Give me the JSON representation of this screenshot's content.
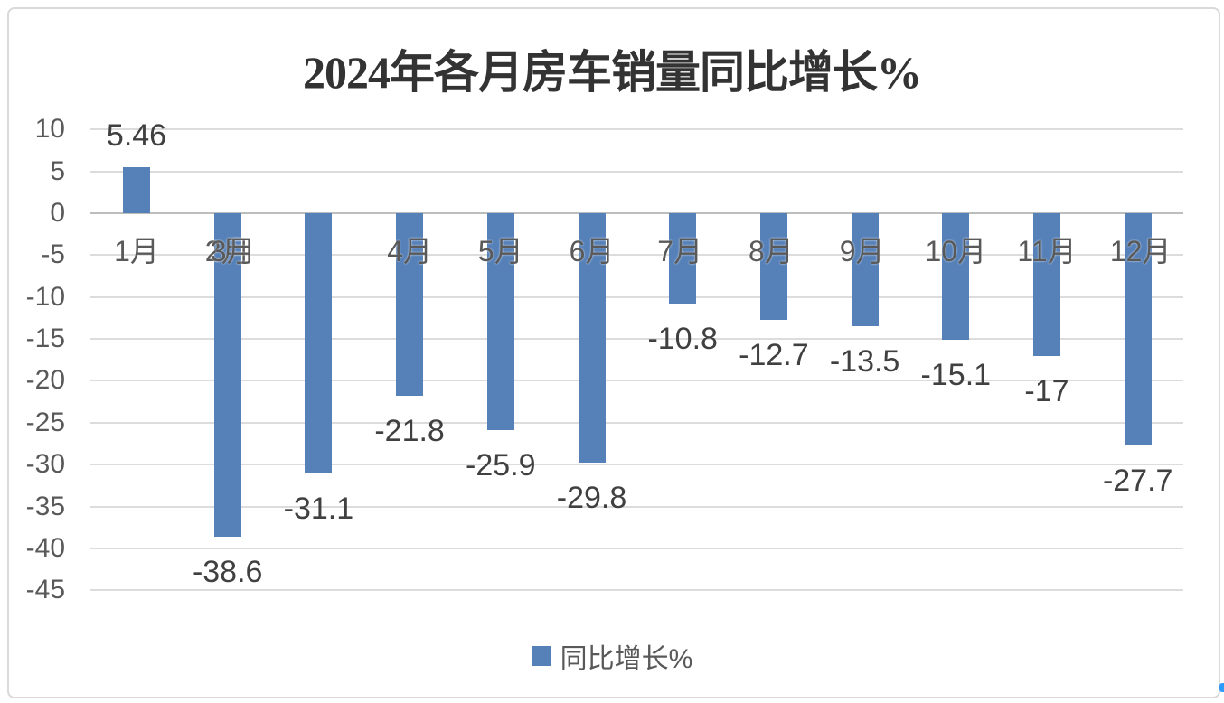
{
  "title": "2024年各月房车销量同比增长%",
  "legend": {
    "label": "同比增长%"
  },
  "colors": {
    "bar": "#5580B8",
    "legend_marker": "#5580B8",
    "gridline": "#DCDCDC",
    "zero_line": "#BDBDBD",
    "frame_border": "#D9D9D9",
    "title_text": "#333333",
    "data_label_text": "#404040",
    "axis_text": "#595959",
    "edge_artifact_blue": "#2F9BFF"
  },
  "chart_data": {
    "type": "bar",
    "title": "2024年各月房车销量同比增长%",
    "xlabel": "",
    "ylabel": "",
    "categories": [
      "1月",
      "2月",
      "3月",
      "4月",
      "5月",
      "6月",
      "7月",
      "8月",
      "9月",
      "10月",
      "11月",
      "12月"
    ],
    "values": [
      5.46,
      -38.6,
      -31.1,
      -21.8,
      -25.9,
      -29.8,
      -10.8,
      -12.7,
      -13.5,
      -15.1,
      -17,
      -27.7
    ],
    "data_labels": [
      "5.46",
      "-38.6",
      "-31.1",
      "-21.8",
      "-25.9",
      "-29.8",
      "-10.8",
      "-12.7",
      "-13.5",
      "-15.1",
      "-17",
      "-27.7"
    ],
    "series_name": "同比增长%",
    "ylim": [
      -45,
      10
    ],
    "yticks": [
      10,
      5,
      0,
      -5,
      -10,
      -15,
      -20,
      -25,
      -30,
      -35,
      -40,
      -45
    ],
    "grid": true,
    "legend_position": "bottom",
    "x_label_layout": [
      {
        "text": "1月",
        "bar": 0,
        "dx": 0
      },
      {
        "text": "2月",
        "bar": 1,
        "dx": 0
      },
      {
        "text": "3月",
        "bar": 1,
        "dx": 6
      },
      {
        "text": "4月",
        "bar": 3,
        "dx": 0
      },
      {
        "text": "5月",
        "bar": 4,
        "dx": 0
      },
      {
        "text": "6月",
        "bar": 5,
        "dx": 0
      },
      {
        "text": "7月",
        "bar": 6,
        "dx": -3
      },
      {
        "text": "8月",
        "bar": 7,
        "dx": -3
      },
      {
        "text": "9月",
        "bar": 8,
        "dx": -3
      },
      {
        "text": "10月",
        "bar": 9,
        "dx": 0
      },
      {
        "text": "11月",
        "bar": 10,
        "dx": 0
      },
      {
        "text": "12月",
        "bar": 11,
        "dx": 3
      }
    ]
  }
}
